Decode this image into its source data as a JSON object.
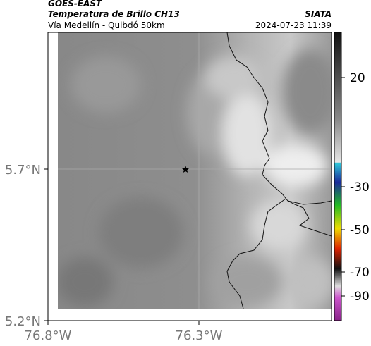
{
  "header": {
    "satellite": "GOES-EAST",
    "product": "Temperatura de Brillo CH13",
    "agency": "SIATA",
    "region": "Vía Medellín - Quibdó 50km",
    "timestamp": "2024-07-23 11:39"
  },
  "axes": {
    "lat_ticks": [
      "5.7°N",
      "5.2°N"
    ],
    "lon_ticks": [
      "76.8°W",
      "76.3°W"
    ]
  },
  "colorbar": {
    "ticks": [
      "20",
      "-30",
      "-50",
      "-70",
      "-90"
    ]
  }
}
